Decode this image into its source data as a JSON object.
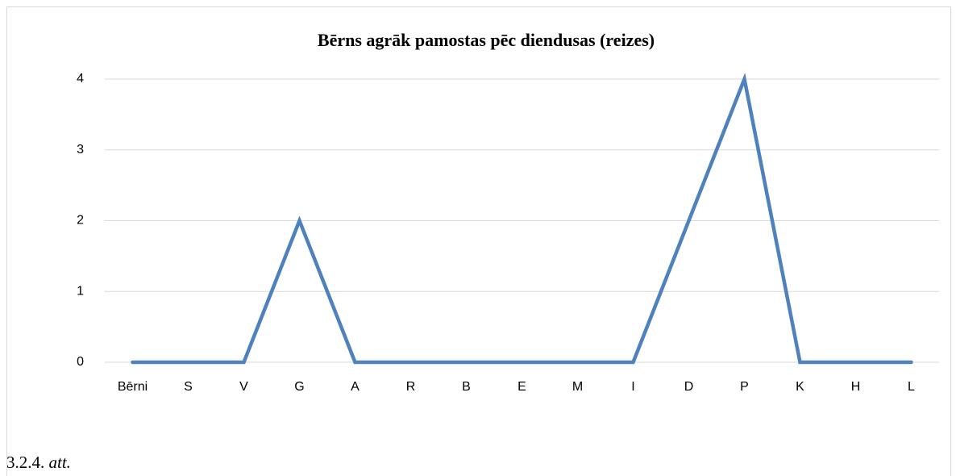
{
  "chart_data": {
    "type": "line",
    "title": "Bērns agrāk pamostas pēc diendusas (reizes)",
    "categories": [
      "Bērni",
      "S",
      "V",
      "G",
      "A",
      "R",
      "B",
      "E",
      "M",
      "I",
      "D",
      "P",
      "K",
      "H",
      "L"
    ],
    "series": [
      {
        "name": null,
        "color": "#4f81bd",
        "values": [
          0,
          0,
          0,
          2,
          0,
          0,
          0,
          0,
          0,
          0,
          2,
          4,
          0,
          0,
          0
        ]
      }
    ],
    "ylim": [
      0,
      4
    ],
    "yticks": [
      0,
      1,
      2,
      3,
      4
    ],
    "grid": true
  },
  "caption": {
    "number": "3.2.4.",
    "text": "att."
  }
}
